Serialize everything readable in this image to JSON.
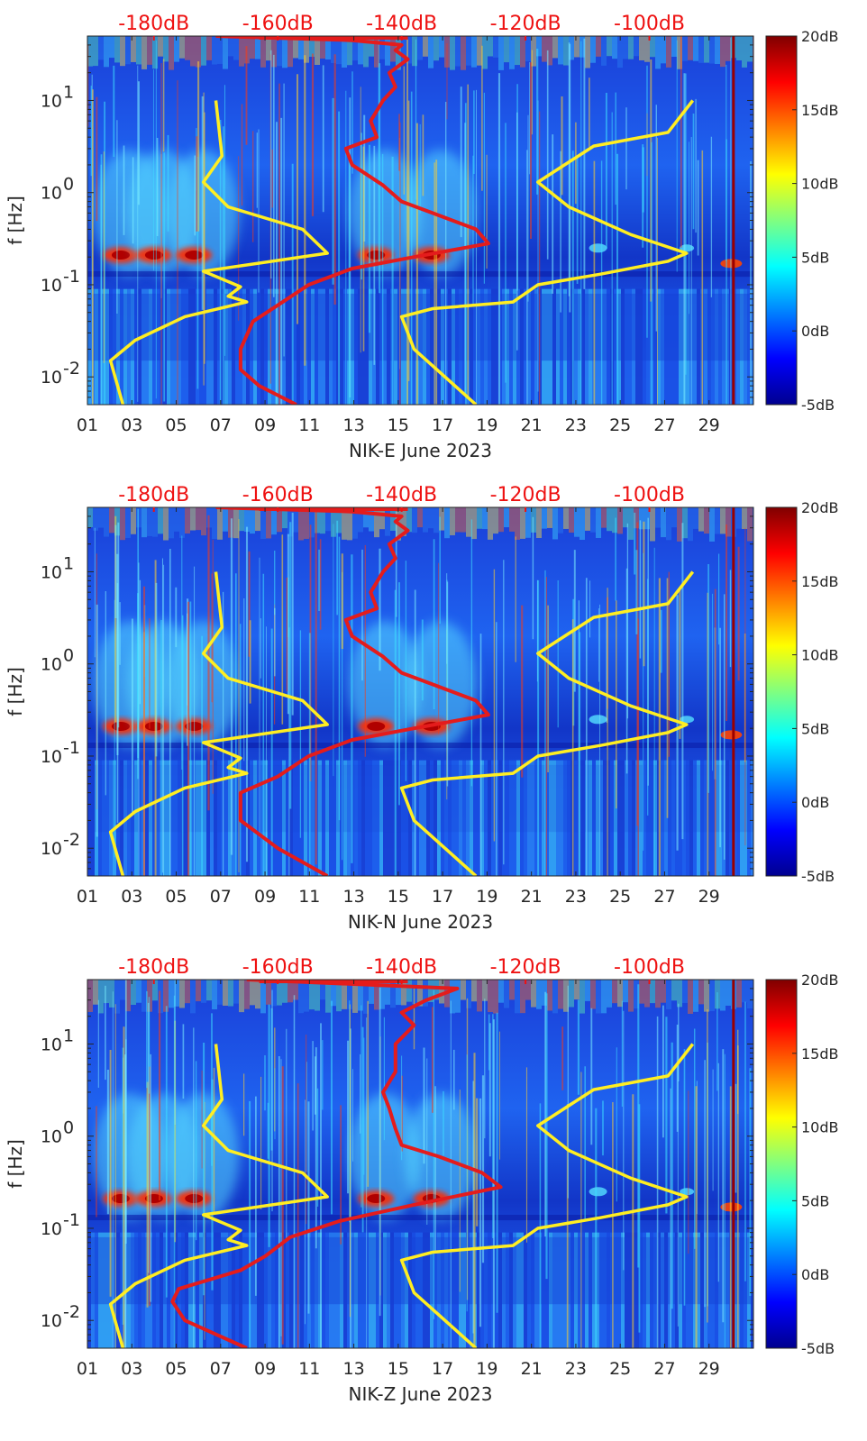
{
  "figure": {
    "colormap": "jet",
    "ylabel": "f [Hz]",
    "top_axis_ticks": [
      "-180dB",
      "-160dB",
      "-140dB",
      "-120dB",
      "-100dB"
    ],
    "colorbar_ticks": [
      "20dB",
      "15dB",
      "10dB",
      "5dB",
      "0dB",
      "-5dB"
    ],
    "colors": {
      "psd_median": "#e41c1c",
      "noise_model": "#ffee22",
      "top_axis_text": "#ee1111"
    }
  },
  "chart_data": [
    {
      "type": "heatmap",
      "title": "NIK-E June 2023",
      "xlabel": "NIK-E June 2023",
      "ylabel": "f [Hz]",
      "x_ticks": [
        "01",
        "03",
        "05",
        "07",
        "09",
        "11",
        "13",
        "15",
        "17",
        "19",
        "21",
        "23",
        "25",
        "27",
        "29"
      ],
      "y_ticks": [
        "10^-2",
        "10^-1",
        "10^0",
        "10^1"
      ],
      "xlim_days": [
        1,
        31
      ],
      "ylim_hz": [
        0.005,
        50
      ],
      "top_axis_db": [
        -180,
        -160,
        -140,
        -120,
        -100
      ],
      "colorbar": {
        "label_unit": "dB",
        "min": -5,
        "max": 20,
        "ticks": [
          20,
          15,
          10,
          5,
          0,
          -5
        ]
      },
      "series": [
        {
          "name": "PSD curve (red)",
          "unit": "dB",
          "points": [
            [
              -157,
              0.005
            ],
            [
              -163,
              0.008
            ],
            [
              -166,
              0.012
            ],
            [
              -166,
              0.02
            ],
            [
              -164,
              0.04
            ],
            [
              -160,
              0.06
            ],
            [
              -155,
              0.1
            ],
            [
              -148,
              0.15
            ],
            [
              -138,
              0.2
            ],
            [
              -126,
              0.28
            ],
            [
              -128,
              0.4
            ],
            [
              -135,
              0.6
            ],
            [
              -140,
              0.8
            ],
            [
              -143,
              1.2
            ],
            [
              -148,
              2
            ],
            [
              -149,
              3
            ],
            [
              -144,
              4
            ],
            [
              -145,
              6
            ],
            [
              -143,
              10
            ],
            [
              -141,
              14
            ],
            [
              -142,
              20
            ],
            [
              -139,
              28
            ],
            [
              -141,
              35
            ],
            [
              -140,
              40
            ],
            [
              -148,
              45
            ],
            [
              -170,
              50
            ]
          ]
        },
        {
          "name": "noise model low (yellow)",
          "unit": "dB",
          "points": [
            [
              -185,
              0.005
            ],
            [
              -187,
              0.015
            ],
            [
              -183,
              0.025
            ],
            [
              -175,
              0.045
            ],
            [
              -165,
              0.065
            ],
            [
              -168,
              0.075
            ],
            [
              -166,
              0.095
            ],
            [
              -172,
              0.14
            ],
            [
              -152,
              0.22
            ],
            [
              -156,
              0.4
            ],
            [
              -168,
              0.7
            ],
            [
              -172,
              1.3
            ],
            [
              -169,
              2.5
            ],
            [
              -170,
              10
            ]
          ]
        },
        {
          "name": "noise model high (yellow)",
          "unit": "dB",
          "points": [
            [
              -128,
              0.005
            ],
            [
              -138,
              0.02
            ],
            [
              -140,
              0.045
            ],
            [
              -135,
              0.055
            ],
            [
              -122,
              0.065
            ],
            [
              -118,
              0.1
            ],
            [
              -108,
              0.13
            ],
            [
              -97,
              0.18
            ],
            [
              -94,
              0.22
            ],
            [
              -103,
              0.35
            ],
            [
              -113,
              0.7
            ],
            [
              -118,
              1.3
            ],
            [
              -109,
              3.2
            ],
            [
              -97,
              4.5
            ],
            [
              -93,
              10
            ]
          ]
        }
      ]
    },
    {
      "type": "heatmap",
      "title": "NIK-N June 2023",
      "xlabel": "NIK-N June 2023",
      "ylabel": "f [Hz]",
      "x_ticks": [
        "01",
        "03",
        "05",
        "07",
        "09",
        "11",
        "13",
        "15",
        "17",
        "19",
        "21",
        "23",
        "25",
        "27",
        "29"
      ],
      "y_ticks": [
        "10^-2",
        "10^-1",
        "10^0",
        "10^1"
      ],
      "xlim_days": [
        1,
        31
      ],
      "ylim_hz": [
        0.005,
        50
      ],
      "top_axis_db": [
        -180,
        -160,
        -140,
        -120,
        -100
      ],
      "colorbar": {
        "label_unit": "dB",
        "min": -5,
        "max": 20,
        "ticks": [
          20,
          15,
          10,
          5,
          0,
          -5
        ]
      },
      "series": [
        {
          "name": "PSD curve (red)",
          "unit": "dB",
          "points": [
            [
              -152,
              0.005
            ],
            [
              -160,
              0.01
            ],
            [
              -166,
              0.02
            ],
            [
              -166,
              0.04
            ],
            [
              -160,
              0.06
            ],
            [
              -155,
              0.1
            ],
            [
              -148,
              0.15
            ],
            [
              -138,
              0.2
            ],
            [
              -126,
              0.28
            ],
            [
              -128,
              0.4
            ],
            [
              -135,
              0.6
            ],
            [
              -140,
              0.8
            ],
            [
              -143,
              1.2
            ],
            [
              -148,
              2
            ],
            [
              -149,
              3
            ],
            [
              -144,
              4
            ],
            [
              -145,
              6
            ],
            [
              -143,
              10
            ],
            [
              -141,
              14
            ],
            [
              -142,
              20
            ],
            [
              -139,
              28
            ],
            [
              -141,
              35
            ],
            [
              -140,
              40
            ],
            [
              -148,
              45
            ],
            [
              -170,
              50
            ]
          ]
        },
        {
          "name": "noise model low (yellow)",
          "unit": "dB",
          "points": [
            [
              -185,
              0.005
            ],
            [
              -187,
              0.015
            ],
            [
              -183,
              0.025
            ],
            [
              -175,
              0.045
            ],
            [
              -165,
              0.065
            ],
            [
              -168,
              0.075
            ],
            [
              -166,
              0.095
            ],
            [
              -172,
              0.14
            ],
            [
              -152,
              0.22
            ],
            [
              -156,
              0.4
            ],
            [
              -168,
              0.7
            ],
            [
              -172,
              1.3
            ],
            [
              -169,
              2.5
            ],
            [
              -170,
              10
            ]
          ]
        },
        {
          "name": "noise model high (yellow)",
          "unit": "dB",
          "points": [
            [
              -128,
              0.005
            ],
            [
              -138,
              0.02
            ],
            [
              -140,
              0.045
            ],
            [
              -135,
              0.055
            ],
            [
              -122,
              0.065
            ],
            [
              -118,
              0.1
            ],
            [
              -108,
              0.13
            ],
            [
              -97,
              0.18
            ],
            [
              -94,
              0.22
            ],
            [
              -103,
              0.35
            ],
            [
              -113,
              0.7
            ],
            [
              -118,
              1.3
            ],
            [
              -109,
              3.2
            ],
            [
              -97,
              4.5
            ],
            [
              -93,
              10
            ]
          ]
        }
      ]
    },
    {
      "type": "heatmap",
      "title": "NIK-Z June 2023",
      "xlabel": "NIK-Z June 2023",
      "ylabel": "f [Hz]",
      "x_ticks": [
        "01",
        "03",
        "05",
        "07",
        "09",
        "11",
        "13",
        "15",
        "17",
        "19",
        "21",
        "23",
        "25",
        "27",
        "29"
      ],
      "y_ticks": [
        "10^-2",
        "10^-1",
        "10^0",
        "10^1"
      ],
      "xlim_days": [
        1,
        31
      ],
      "ylim_hz": [
        0.005,
        50
      ],
      "top_axis_db": [
        -180,
        -160,
        -140,
        -120,
        -100
      ],
      "colorbar": {
        "label_unit": "dB",
        "min": -5,
        "max": 20,
        "ticks": [
          20,
          15,
          10,
          5,
          0,
          -5
        ]
      },
      "series": [
        {
          "name": "PSD curve (red)",
          "unit": "dB",
          "points": [
            [
              -165,
              0.005
            ],
            [
              -175,
              0.01
            ],
            [
              -177,
              0.016
            ],
            [
              -176,
              0.022
            ],
            [
              -166,
              0.035
            ],
            [
              -162,
              0.05
            ],
            [
              -158,
              0.08
            ],
            [
              -150,
              0.12
            ],
            [
              -138,
              0.18
            ],
            [
              -124,
              0.28
            ],
            [
              -127,
              0.4
            ],
            [
              -134,
              0.6
            ],
            [
              -140,
              0.8
            ],
            [
              -141,
              1.2
            ],
            [
              -142,
              2
            ],
            [
              -143,
              3
            ],
            [
              -141,
              5
            ],
            [
              -141,
              10
            ],
            [
              -138,
              16
            ],
            [
              -140,
              22
            ],
            [
              -136,
              30
            ],
            [
              -131,
              40
            ],
            [
              -165,
              50
            ]
          ]
        },
        {
          "name": "noise model low (yellow)",
          "unit": "dB",
          "points": [
            [
              -185,
              0.005
            ],
            [
              -187,
              0.015
            ],
            [
              -183,
              0.025
            ],
            [
              -175,
              0.045
            ],
            [
              -165,
              0.065
            ],
            [
              -168,
              0.075
            ],
            [
              -166,
              0.095
            ],
            [
              -172,
              0.14
            ],
            [
              -152,
              0.22
            ],
            [
              -156,
              0.4
            ],
            [
              -168,
              0.7
            ],
            [
              -172,
              1.3
            ],
            [
              -169,
              2.5
            ],
            [
              -170,
              10
            ]
          ]
        },
        {
          "name": "noise model high (yellow)",
          "unit": "dB",
          "points": [
            [
              -128,
              0.005
            ],
            [
              -138,
              0.02
            ],
            [
              -140,
              0.045
            ],
            [
              -135,
              0.055
            ],
            [
              -122,
              0.065
            ],
            [
              -118,
              0.1
            ],
            [
              -108,
              0.13
            ],
            [
              -97,
              0.18
            ],
            [
              -94,
              0.22
            ],
            [
              -103,
              0.35
            ],
            [
              -113,
              0.7
            ],
            [
              -118,
              1.3
            ],
            [
              -109,
              3.2
            ],
            [
              -97,
              4.5
            ],
            [
              -93,
              10
            ]
          ]
        }
      ]
    }
  ]
}
